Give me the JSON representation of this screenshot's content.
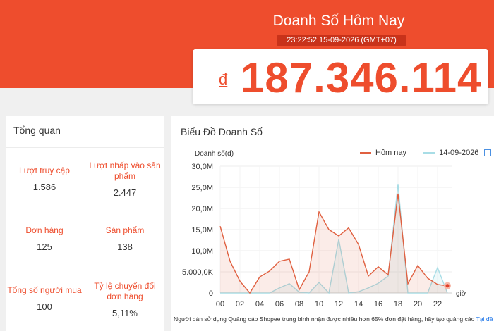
{
  "header": {
    "title": "Doanh Số Hôm Nay",
    "timestamp": "23:22:52 15-09-2026 (GMT+07)",
    "currency_symbol": "đ",
    "amount": "187.346.114"
  },
  "overview": {
    "title": "Tổng quan",
    "metrics": [
      {
        "label": "Lượt truy cập",
        "value": "1.586"
      },
      {
        "label": "Lượt nhấp vào sản phẩm",
        "value": "2.447"
      },
      {
        "label": "Đơn hàng",
        "value": "125"
      },
      {
        "label": "Sản phẩm",
        "value": "138"
      },
      {
        "label": "Tổng số người mua",
        "value": "100"
      },
      {
        "label": "Tỷ lệ chuyển đổi đơn hàng",
        "value": "5,11%"
      }
    ]
  },
  "chart_panel": {
    "title": "Biểu Đồ Doanh Số",
    "footnote": "Người bán sử dụng Quảng cáo Shopee trung bình nhận được nhiều hơn 65% đơn đặt hàng, hãy tạo quảng cáo",
    "footnote_link": "Tại đây",
    "calendar_icon": "calendar-icon"
  },
  "colors": {
    "accent": "#ee4d2d",
    "today": "#e06040",
    "yesterday": "#a8dde6"
  },
  "chart_data": {
    "type": "line",
    "ylabel": "Doanh số(đ)",
    "xlabel": "giờ",
    "ylim": [
      0,
      30000000
    ],
    "y_ticks": [
      0,
      5000000,
      10000000,
      15000000,
      20000000,
      25000000,
      30000000
    ],
    "y_tick_labels": [
      "0",
      "5.000,0K",
      "10,0M",
      "15,0M",
      "20,0M",
      "25,0M",
      "30,0M"
    ],
    "x": [
      0,
      1,
      2,
      3,
      4,
      5,
      6,
      7,
      8,
      9,
      10,
      11,
      12,
      13,
      14,
      15,
      16,
      17,
      18,
      19,
      20,
      21,
      22,
      23
    ],
    "x_tick_labels": [
      "00",
      "02",
      "04",
      "06",
      "08",
      "10",
      "12",
      "14",
      "16",
      "18",
      "20",
      "22"
    ],
    "x_tick_values": [
      0,
      2,
      4,
      6,
      8,
      10,
      12,
      14,
      16,
      18,
      20,
      22
    ],
    "grid": true,
    "legend": "top-right",
    "series": [
      {
        "name": "Hôm nay",
        "color": "#e06040",
        "values": [
          15800000,
          7500000,
          2800000,
          0,
          3800000,
          5200000,
          7500000,
          8000000,
          800000,
          5000000,
          19200000,
          15000000,
          13500000,
          15400000,
          11500000,
          4000000,
          6200000,
          4300000,
          23500000,
          2200000,
          6500000,
          3500000,
          2000000,
          1700000
        ]
      },
      {
        "name": "14-09-2026",
        "color": "#a8dde6",
        "values": [
          0,
          0,
          0,
          0,
          0,
          0,
          1200000,
          2200000,
          200000,
          0,
          2500000,
          0,
          12700000,
          0,
          300000,
          1200000,
          2300000,
          4000000,
          25800000,
          0,
          0,
          0,
          6000000,
          0
        ]
      }
    ]
  }
}
